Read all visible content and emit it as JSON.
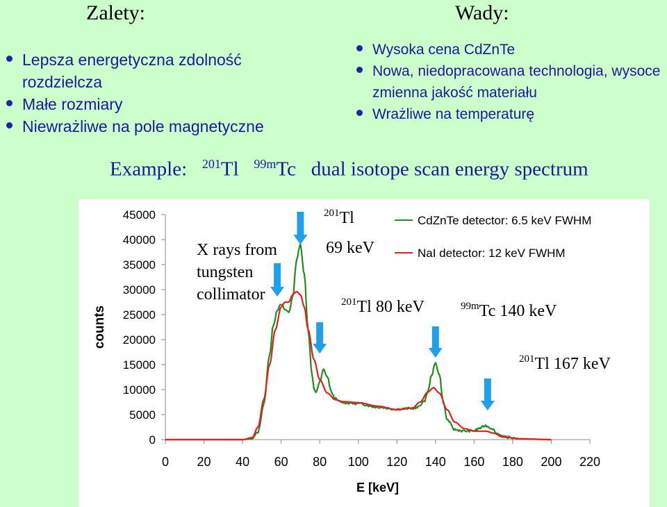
{
  "pros": {
    "heading": "Zalety:",
    "items": [
      "Lepsza energetyczna zdolność rozdzielcza",
      "Małe rozmiary",
      "Niewrażliwe na pole magnetyczne"
    ]
  },
  "cons": {
    "heading": "Wady:",
    "items": [
      "Wysoka cena CdZnTe",
      "Nowa, niedopracowana technologia, wysoce zmienna jakość materiału",
      "Wrażliwe na temperaturę"
    ]
  },
  "example": {
    "prefix": "Example:",
    "tl_mass": "201",
    "tl_symbol": "Tl",
    "tc_mass": "99m",
    "tc_symbol": "Tc",
    "suffix": "dual isotope scan energy spectrum"
  },
  "colors": {
    "background": "#ccffcc",
    "bullet_text": "#1a1a99",
    "czt_line": "#1e8c1e",
    "nai_line": "#e02020",
    "arrow": "#1fa0e8"
  },
  "chart_data": {
    "type": "line",
    "xlabel": "E [keV]",
    "ylabel": "counts",
    "xlim": [
      0,
      220
    ],
    "ylim": [
      0,
      45000
    ],
    "x_ticks": [
      0,
      20,
      40,
      60,
      80,
      100,
      120,
      140,
      160,
      180,
      200,
      220
    ],
    "y_ticks": [
      0,
      5000,
      10000,
      15000,
      20000,
      25000,
      30000,
      35000,
      40000,
      45000
    ],
    "grid": false,
    "legend_position": "top-right",
    "series": [
      {
        "name": "CdZnTe detector: 6.5 keV FWHM",
        "color": "#1e8c1e",
        "points": [
          [
            0,
            0
          ],
          [
            40,
            0
          ],
          [
            45,
            200
          ],
          [
            48,
            1500
          ],
          [
            51,
            7000
          ],
          [
            54,
            17000
          ],
          [
            56,
            23000
          ],
          [
            58,
            26000
          ],
          [
            60,
            27000
          ],
          [
            62,
            26000
          ],
          [
            64,
            25500
          ],
          [
            66,
            28500
          ],
          [
            68,
            36000
          ],
          [
            70,
            39000
          ],
          [
            72,
            33000
          ],
          [
            74,
            22000
          ],
          [
            76,
            13000
          ],
          [
            77,
            10000
          ],
          [
            78,
            9500
          ],
          [
            80,
            11500
          ],
          [
            82,
            14000
          ],
          [
            84,
            12500
          ],
          [
            86,
            9500
          ],
          [
            88,
            8200
          ],
          [
            90,
            7600
          ],
          [
            95,
            7300
          ],
          [
            100,
            7200
          ],
          [
            110,
            6500
          ],
          [
            120,
            6100
          ],
          [
            130,
            6300
          ],
          [
            134,
            7500
          ],
          [
            136,
            9500
          ],
          [
            138,
            13000
          ],
          [
            140,
            15300
          ],
          [
            142,
            13000
          ],
          [
            144,
            7500
          ],
          [
            146,
            4000
          ],
          [
            150,
            2000
          ],
          [
            155,
            1700
          ],
          [
            160,
            1800
          ],
          [
            163,
            2300
          ],
          [
            166,
            2800
          ],
          [
            169,
            2300
          ],
          [
            172,
            1200
          ],
          [
            176,
            500
          ],
          [
            185,
            150
          ],
          [
            200,
            0
          ]
        ]
      },
      {
        "name": "NaI detector: 12 keV FWHM",
        "color": "#e02020",
        "points": [
          [
            0,
            0
          ],
          [
            40,
            0
          ],
          [
            45,
            400
          ],
          [
            48,
            2500
          ],
          [
            51,
            8000
          ],
          [
            54,
            15000
          ],
          [
            57,
            22000
          ],
          [
            60,
            26500
          ],
          [
            62,
            27500
          ],
          [
            64,
            27500
          ],
          [
            66,
            29000
          ],
          [
            68,
            29600
          ],
          [
            70,
            29000
          ],
          [
            72,
            26500
          ],
          [
            74,
            22000
          ],
          [
            77,
            16000
          ],
          [
            80,
            12000
          ],
          [
            84,
            9300
          ],
          [
            88,
            8000
          ],
          [
            92,
            7600
          ],
          [
            100,
            7400
          ],
          [
            110,
            6700
          ],
          [
            120,
            6000
          ],
          [
            128,
            6300
          ],
          [
            132,
            7500
          ],
          [
            136,
            9500
          ],
          [
            139,
            10400
          ],
          [
            142,
            9300
          ],
          [
            146,
            6000
          ],
          [
            150,
            3500
          ],
          [
            155,
            2200
          ],
          [
            160,
            1700
          ],
          [
            166,
            1700
          ],
          [
            170,
            1300
          ],
          [
            175,
            500
          ],
          [
            185,
            150
          ],
          [
            200,
            0
          ]
        ]
      }
    ],
    "annotations": [
      {
        "lines": [
          "X rays from",
          "tungsten",
          "collimator"
        ]
      },
      {
        "mass": "201",
        "symbol": "Tl",
        "energy": "69 keV"
      },
      {
        "mass": "201",
        "symbol": "Tl",
        "energy": "80 keV"
      },
      {
        "mass": "99m",
        "symbol": "Tc",
        "energy": "140 keV"
      },
      {
        "mass": "201",
        "symbol": "Tl",
        "energy": "167 keV"
      }
    ],
    "arrows_at_keV": [
      58,
      70,
      80,
      140,
      167
    ]
  }
}
